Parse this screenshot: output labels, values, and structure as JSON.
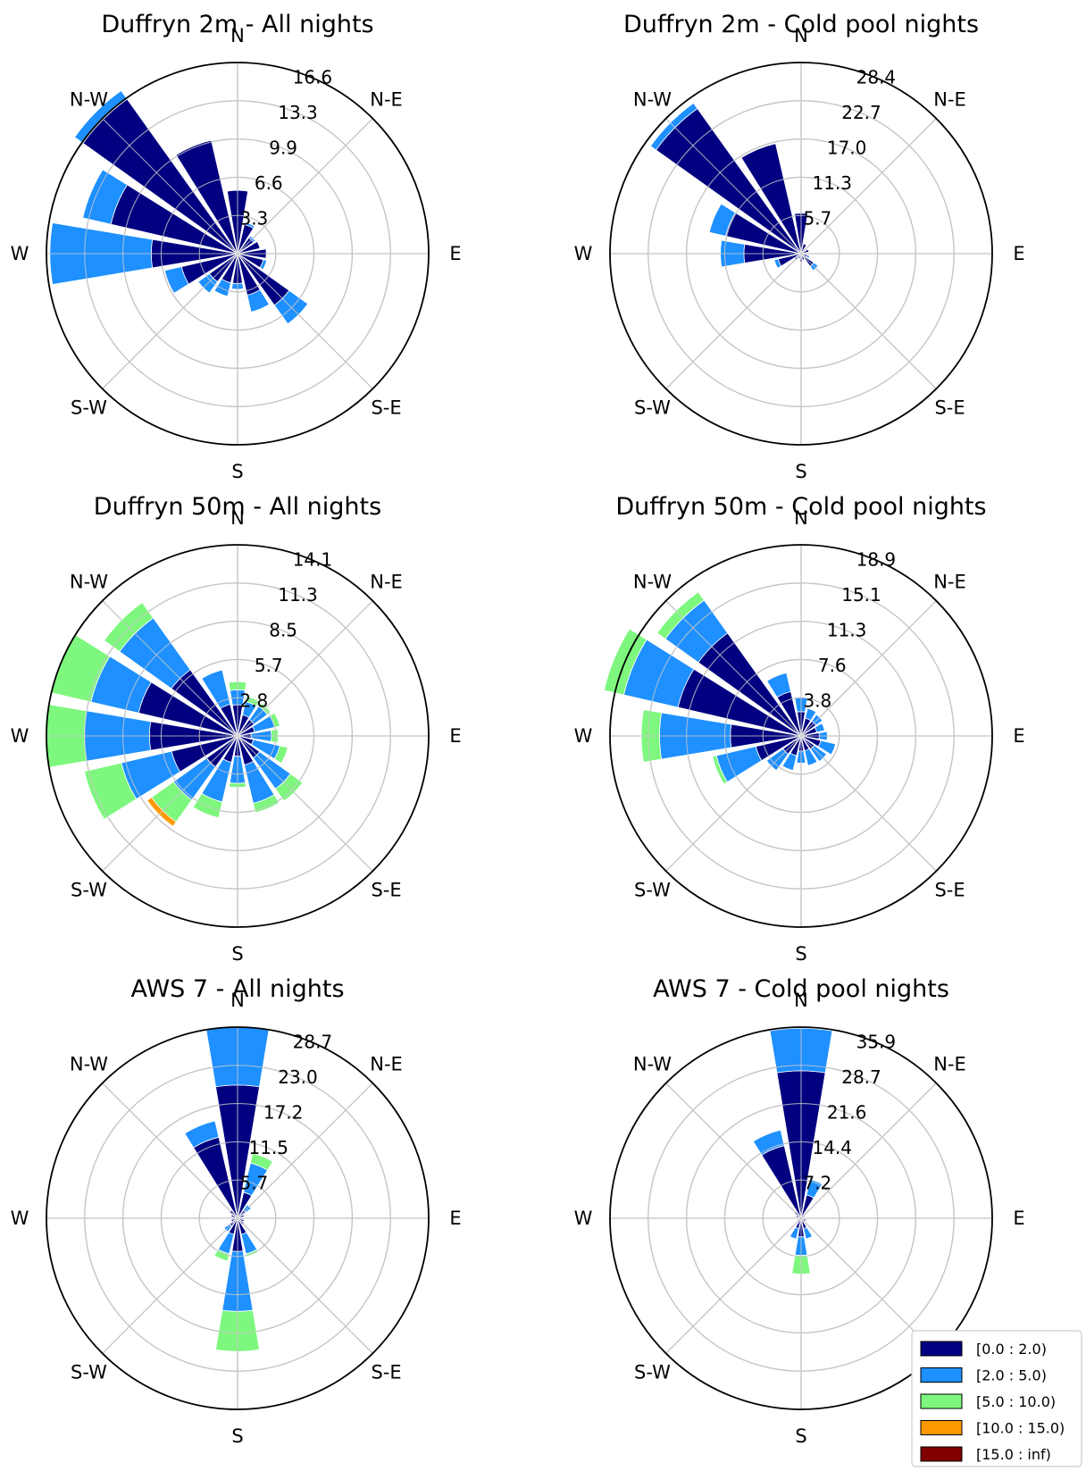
{
  "figure": {
    "direction_labels": [
      "E",
      "N-E",
      "N",
      "N-W",
      "W",
      "S-W",
      "S",
      "S-E"
    ],
    "speed_bins": [
      {
        "label": "[0.0 : 2.0)",
        "color": "#000080"
      },
      {
        "label": "[2.0 : 5.0)",
        "color": "#1e90ff"
      },
      {
        "label": "[5.0 : 10.0)",
        "color": "#7df77d"
      },
      {
        "label": "[10.0 : 15.0)",
        "color": "#ff9900"
      },
      {
        "label": "[15.0 : inf)",
        "color": "#800000"
      }
    ]
  },
  "chart_data": [
    {
      "type": "windrose",
      "title": "Duffryn 2m - All nights",
      "rmax": 16.6,
      "ring_ticks": [
        "3.3",
        "6.6",
        "9.9",
        "13.3",
        "16.6"
      ],
      "sector_directions": [
        "N",
        "NNE",
        "NE",
        "ENE",
        "E",
        "ESE",
        "SE",
        "SSE",
        "S",
        "SSW",
        "SW",
        "WSW",
        "W",
        "WNW",
        "NW",
        "NNW"
      ],
      "bins": [
        "[0.0 : 2.0)",
        "[2.0 : 5.0)",
        "[5.0 : 10.0)",
        "[10.0 : 15.0)",
        "[15.0 : inf)"
      ],
      "sectors": [
        [
          5.5,
          0,
          0,
          0,
          0
        ],
        [
          2.6,
          0.2,
          0,
          0,
          0
        ],
        [
          1.7,
          0.2,
          0,
          0,
          0
        ],
        [
          2.0,
          0,
          0,
          0,
          0
        ],
        [
          2.5,
          0,
          0,
          0,
          0
        ],
        [
          2.3,
          0.3,
          0,
          0,
          0
        ],
        [
          5.5,
          2.0,
          0,
          0,
          0
        ],
        [
          3.7,
          1.5,
          0,
          0,
          0
        ],
        [
          2.6,
          0.5,
          0,
          0,
          0
        ],
        [
          2.6,
          1.2,
          0,
          0,
          0
        ],
        [
          3.0,
          1.2,
          0,
          0,
          0
        ],
        [
          5.0,
          1.5,
          0,
          0,
          0
        ],
        [
          7.5,
          8.8,
          0,
          0,
          0
        ],
        [
          11.3,
          2.5,
          0,
          0,
          0
        ],
        [
          16.5,
          0.9,
          0,
          0,
          0
        ],
        [
          10.1,
          0,
          0,
          0,
          0
        ]
      ]
    },
    {
      "type": "windrose",
      "title": "Duffryn 2m - Cold pool nights",
      "rmax": 28.4,
      "ring_ticks": [
        "5.7",
        "11.3",
        "17.0",
        "22.7",
        "28.4"
      ],
      "sector_directions": [
        "N",
        "NNE",
        "NE",
        "ENE",
        "E",
        "ESE",
        "SE",
        "SSE",
        "S",
        "SSW",
        "SW",
        "WSW",
        "W",
        "WNW",
        "NW",
        "NNW"
      ],
      "bins": [
        "[0.0 : 2.0)",
        "[2.0 : 5.0)",
        "[5.0 : 10.0)",
        "[10.0 : 15.0)",
        "[15.0 : inf)"
      ],
      "sectors": [
        [
          6.0,
          0,
          0,
          0,
          0
        ],
        [
          1.5,
          0,
          0,
          0,
          0
        ],
        [
          0.8,
          0,
          0,
          0,
          0
        ],
        [
          1.2,
          0,
          0,
          0,
          0
        ],
        [
          0.8,
          0,
          0,
          0,
          0
        ],
        [
          1.0,
          0.3,
          0,
          0,
          0
        ],
        [
          2.3,
          0.8,
          0,
          0,
          0
        ],
        [
          1.0,
          0,
          0,
          0,
          0
        ],
        [
          1.2,
          0,
          0,
          0,
          0
        ],
        [
          0.8,
          0,
          0,
          0,
          0
        ],
        [
          1.2,
          0,
          0,
          0,
          0
        ],
        [
          3.5,
          0.6,
          0,
          0,
          0
        ],
        [
          8.5,
          3.5,
          0,
          0,
          0
        ],
        [
          11.5,
          2.5,
          0,
          0,
          0
        ],
        [
          26.5,
          1.0,
          0,
          0,
          0
        ],
        [
          16.8,
          0,
          0,
          0,
          0
        ]
      ]
    },
    {
      "type": "windrose",
      "title": "Duffryn 50m - All nights",
      "rmax": 14.1,
      "ring_ticks": [
        "2.8",
        "5.7",
        "8.5",
        "11.3",
        "14.1"
      ],
      "sector_directions": [
        "N",
        "NNE",
        "NE",
        "ENE",
        "E",
        "ESE",
        "SE",
        "SSE",
        "S",
        "SSW",
        "SW",
        "WSW",
        "W",
        "WNW",
        "NW",
        "NNW"
      ],
      "bins": [
        "[0.0 : 2.0)",
        "[2.0 : 5.0)",
        "[5.0 : 10.0)",
        "[10.0 : 15.0)",
        "[15.0 : inf)"
      ],
      "sectors": [
        [
          2.3,
          1.1,
          0.6,
          0,
          0
        ],
        [
          1.6,
          1.0,
          0.4,
          0,
          0
        ],
        [
          1.5,
          1.2,
          0.3,
          0,
          0
        ],
        [
          1.3,
          1.5,
          0.4,
          0,
          0
        ],
        [
          1.0,
          1.5,
          0.5,
          0,
          0
        ],
        [
          1.2,
          2.0,
          0.6,
          0,
          0
        ],
        [
          2.0,
          2.8,
          1.1,
          0,
          0
        ],
        [
          2.2,
          2.9,
          0.7,
          0,
          0
        ],
        [
          1.5,
          2.0,
          0.3,
          0,
          0
        ],
        [
          2.0,
          3.0,
          1.2,
          0,
          0
        ],
        [
          2.8,
          3.0,
          2.0,
          0.4,
          0
        ],
        [
          5.0,
          3.8,
          2.8,
          0,
          0
        ],
        [
          6.5,
          4.8,
          2.9,
          0,
          0
        ],
        [
          7.5,
          3.6,
          3.0,
          0,
          0
        ],
        [
          6.0,
          4.7,
          1.4,
          0,
          0
        ],
        [
          2.4,
          2.6,
          0,
          0,
          0
        ]
      ]
    },
    {
      "type": "windrose",
      "title": "Duffryn 50m - Cold pool nights",
      "rmax": 18.9,
      "ring_ticks": [
        "3.8",
        "7.6",
        "11.3",
        "15.1",
        "18.9"
      ],
      "sector_directions": [
        "N",
        "NNE",
        "NE",
        "ENE",
        "E",
        "ESE",
        "SE",
        "SSE",
        "S",
        "SSW",
        "SW",
        "WSW",
        "W",
        "WNW",
        "NW",
        "NNW"
      ],
      "bins": [
        "[0.0 : 2.0)",
        "[2.0 : 5.0)",
        "[5.0 : 10.0)",
        "[10.0 : 15.0)",
        "[15.0 : inf)"
      ],
      "sectors": [
        [
          2.4,
          1.4,
          0,
          0,
          0
        ],
        [
          1.8,
          1.0,
          0,
          0,
          0
        ],
        [
          1.8,
          0.8,
          0,
          0,
          0
        ],
        [
          1.6,
          0.8,
          0,
          0,
          0
        ],
        [
          1.8,
          0.8,
          0,
          0,
          0
        ],
        [
          2.0,
          1.5,
          0,
          0,
          0
        ],
        [
          1.6,
          1.5,
          0,
          0,
          0
        ],
        [
          1.5,
          1.5,
          0,
          0,
          0
        ],
        [
          1.5,
          1.2,
          0,
          0,
          0
        ],
        [
          2.0,
          1.5,
          0,
          0,
          0
        ],
        [
          2.2,
          2.0,
          0,
          0,
          0
        ],
        [
          4.6,
          4.0,
          0.4,
          0,
          0
        ],
        [
          7.0,
          7.0,
          1.8,
          0,
          0
        ],
        [
          12.5,
          5.5,
          2.0,
          0,
          0
        ],
        [
          12.5,
          4.0,
          1.0,
          0,
          0
        ],
        [
          4.5,
          1.9,
          0,
          0,
          0
        ]
      ]
    },
    {
      "type": "windrose",
      "title": "AWS 7 - All nights",
      "rmax": 28.7,
      "ring_ticks": [
        "5.7",
        "11.5",
        "17.2",
        "23.0",
        "28.7"
      ],
      "sector_directions": [
        "N",
        "NNE",
        "NE",
        "ENE",
        "E",
        "ESE",
        "SE",
        "SSE",
        "S",
        "SSW",
        "SW",
        "WSW",
        "W",
        "WNW",
        "NW",
        "NNW"
      ],
      "bins": [
        "[0.0 : 2.0)",
        "[2.0 : 5.0)",
        "[5.0 : 10.0)",
        "[10.0 : 15.0)",
        "[15.0 : inf)"
      ],
      "sectors": [
        [
          20.0,
          8.7,
          0,
          0,
          0
        ],
        [
          4.0,
          4.5,
          1.5,
          0,
          0
        ],
        [
          1.5,
          1.0,
          0,
          0,
          0
        ],
        [
          1.0,
          0,
          0,
          0,
          0
        ],
        [
          0.8,
          0,
          0,
          0,
          0
        ],
        [
          1.0,
          0,
          0,
          0,
          0
        ],
        [
          1.2,
          0,
          0,
          0,
          0
        ],
        [
          2.5,
          3.0,
          0.4,
          0,
          0
        ],
        [
          5.0,
          9.0,
          6.0,
          0,
          0
        ],
        [
          2.5,
          3.0,
          1.1,
          0,
          0
        ],
        [
          1.5,
          1.0,
          0,
          0,
          0
        ],
        [
          1.0,
          0,
          0,
          0,
          0
        ],
        [
          0.8,
          0,
          0,
          0,
          0
        ],
        [
          1.0,
          0,
          0,
          0,
          0
        ],
        [
          1.5,
          0,
          0,
          0,
          0
        ],
        [
          12.5,
          2.5,
          0,
          0,
          0
        ]
      ]
    },
    {
      "type": "windrose",
      "title": "AWS 7 - Cold pool nights",
      "rmax": 35.9,
      "ring_ticks": [
        "7.2",
        "14.4",
        "21.6",
        "28.7",
        "35.9"
      ],
      "sector_directions": [
        "N",
        "NNE",
        "NE",
        "ENE",
        "E",
        "ESE",
        "SE",
        "SSE",
        "S",
        "SSW",
        "SW",
        "WSW",
        "W",
        "WNW",
        "NW",
        "NNW"
      ],
      "bins": [
        "[0.0 : 2.0)",
        "[2.0 : 5.0)",
        "[5.0 : 10.0)",
        "[10.0 : 15.0)",
        "[15.0 : inf)"
      ],
      "sectors": [
        [
          27.7,
          8.0,
          0,
          0,
          0
        ],
        [
          4.5,
          3.0,
          0,
          0,
          0
        ],
        [
          1.0,
          0,
          0,
          0,
          0
        ],
        [
          0.8,
          0,
          0,
          0,
          0
        ],
        [
          0.8,
          0,
          0,
          0,
          0
        ],
        [
          1.0,
          0,
          0,
          0,
          0
        ],
        [
          1.0,
          0,
          0,
          0,
          0
        ],
        [
          2.0,
          2.0,
          0,
          0,
          0
        ],
        [
          3.5,
          3.5,
          3.5,
          0,
          0
        ],
        [
          2.0,
          2.0,
          0,
          0,
          0
        ],
        [
          1.0,
          0,
          0,
          0,
          0
        ],
        [
          0.8,
          0,
          0,
          0,
          0
        ],
        [
          0.8,
          0,
          0,
          0,
          0
        ],
        [
          1.0,
          0,
          0,
          0,
          0
        ],
        [
          1.5,
          0,
          0,
          0,
          0
        ],
        [
          14.0,
          3.0,
          0,
          0,
          0
        ]
      ]
    }
  ]
}
